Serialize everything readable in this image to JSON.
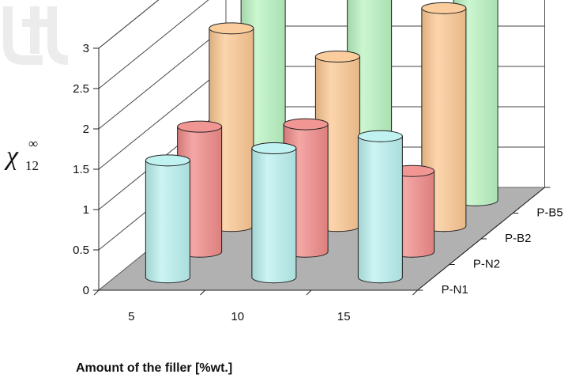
{
  "chart_data": {
    "type": "bar",
    "style": "3d-cylinder",
    "categories": [
      "5",
      "10",
      "15"
    ],
    "series": [
      {
        "name": "P-N1",
        "color": "#b9f0ef",
        "values": [
          1.45,
          1.6,
          1.75
        ]
      },
      {
        "name": "P-N2",
        "color": "#f08a88",
        "values": [
          1.55,
          1.58,
          1.0
        ]
      },
      {
        "name": "P-B2",
        "color": "#fbc792",
        "values": [
          2.45,
          2.1,
          2.7
        ]
      },
      {
        "name": "P-B5",
        "color": "#b9f3c0",
        "values": [
          2.65,
          2.85,
          2.65
        ]
      }
    ],
    "xlabel": "Amount of the  filler [%wt.]",
    "ylabel": {
      "symbol": "χ",
      "subscript": "12",
      "superscript": "∞"
    },
    "yticks": [
      "0",
      "0.5",
      "1",
      "1.5",
      "2",
      "2.5",
      "3"
    ],
    "ylim": [
      0,
      3
    ],
    "grid": true,
    "floor_color": "#b1b1b1"
  }
}
